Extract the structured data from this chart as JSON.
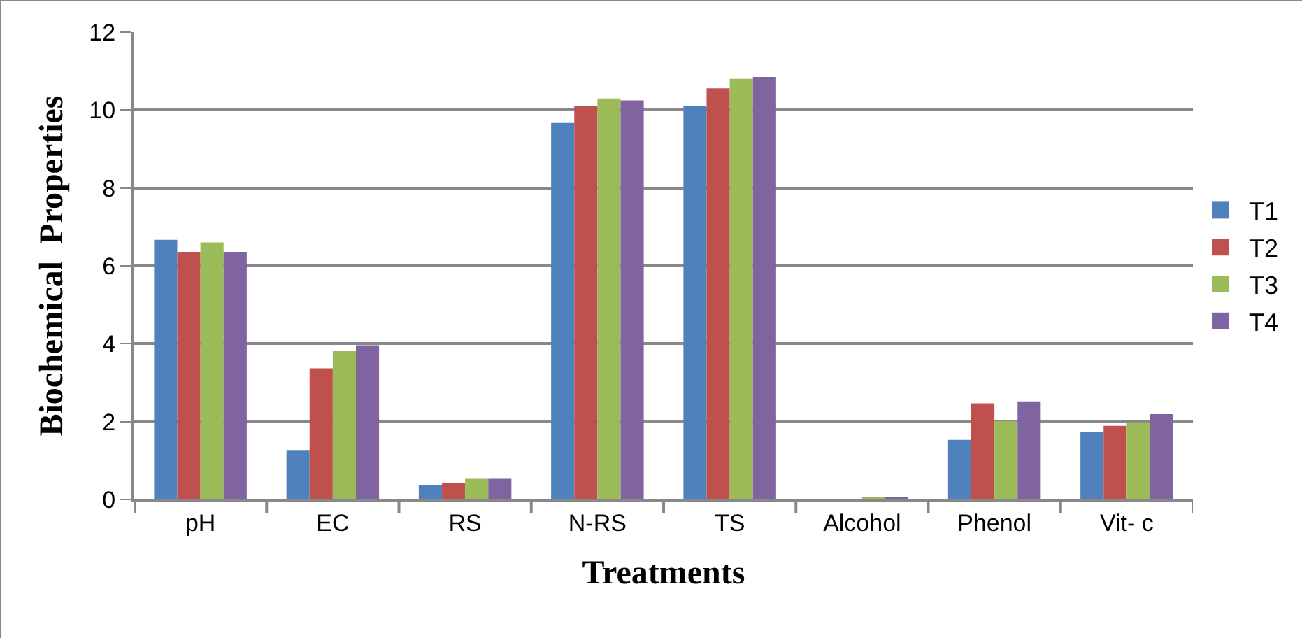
{
  "chart_data": {
    "type": "bar",
    "xlabel": "Treatments",
    "ylabel": "Biochemical  Properties",
    "categories": [
      "pH",
      "EC",
      "RS",
      "N-RS",
      "TS",
      "Alcohol",
      "Phenol",
      "Vit- c"
    ],
    "series": [
      {
        "name": "T1",
        "color": "#4f81bd",
        "values": [
          6.67,
          1.27,
          0.37,
          9.67,
          10.1,
          0,
          1.53,
          1.73
        ]
      },
      {
        "name": "T2",
        "color": "#c0504d",
        "values": [
          6.36,
          3.37,
          0.43,
          10.1,
          10.56,
          0,
          2.47,
          1.89
        ]
      },
      {
        "name": "T3",
        "color": "#9bbb59",
        "values": [
          6.6,
          3.81,
          0.53,
          10.3,
          10.8,
          0.07,
          2.01,
          1.98
        ]
      },
      {
        "name": "T4",
        "color": "#8064a2",
        "values": [
          6.36,
          3.96,
          0.53,
          10.25,
          10.85,
          0.07,
          2.52,
          2.19
        ]
      }
    ],
    "ylim": [
      0,
      12
    ],
    "yticks": [
      0,
      2,
      4,
      6,
      8,
      10,
      12
    ],
    "grid": "y",
    "legend": "right"
  }
}
